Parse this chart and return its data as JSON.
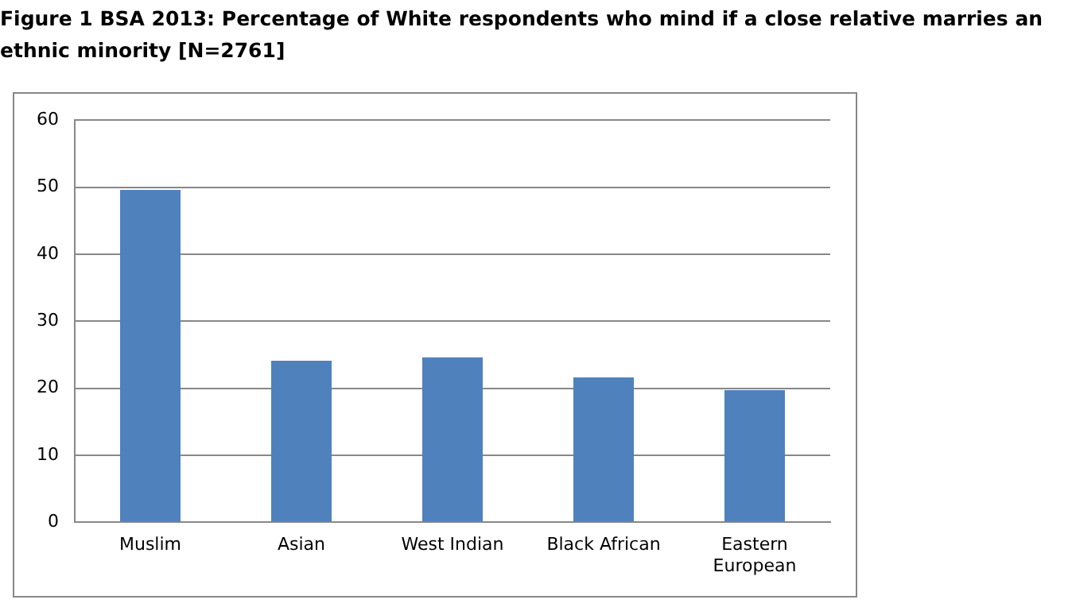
{
  "chart_data": {
    "type": "bar",
    "title": "Figure 1 BSA 2013: Percentage of White respondents who mind if a close relative marries an ethnic minority [N=2761]",
    "categories": [
      "Muslim",
      "Asian",
      "West Indian",
      "Black African",
      "Eastern European"
    ],
    "values": [
      49.6,
      24.1,
      24.6,
      21.6,
      19.7
    ],
    "color": "#4f81bd",
    "ylim": [
      0,
      60
    ],
    "yticks": [
      0,
      10,
      20,
      30,
      40,
      50,
      60
    ],
    "grid": "y",
    "legend": false
  }
}
